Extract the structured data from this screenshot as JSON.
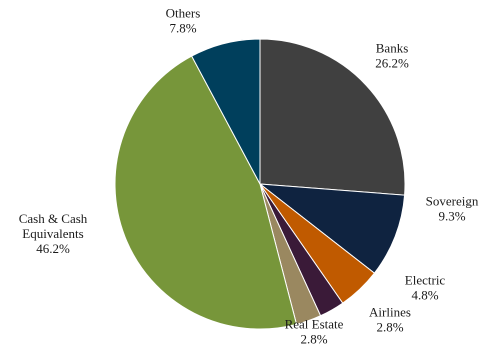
{
  "chart_data": {
    "type": "pie",
    "title": "",
    "start_angle_deg": 0,
    "direction": "clockwise",
    "slices": [
      {
        "label": "Banks",
        "value_label": "26.2%",
        "value": 26.2,
        "color": "#404040"
      },
      {
        "label": "Sovereign",
        "value_label": "9.3%",
        "value": 9.3,
        "color": "#0f2340"
      },
      {
        "label": "Electric",
        "value_label": "4.8%",
        "value": 4.8,
        "color": "#c05a00"
      },
      {
        "label": "Airlines",
        "value_label": "2.8%",
        "value": 2.8,
        "color": "#3a1a38"
      },
      {
        "label": "Real Estate",
        "value_label": "2.8%",
        "value": 2.8,
        "color": "#9a8860"
      },
      {
        "label": "Cash & Cash Equivalents",
        "label_lines": [
          "Cash & Cash",
          "Equivalents"
        ],
        "value_label": "46.2%",
        "value": 46.2,
        "color": "#77963a"
      },
      {
        "label": "Others",
        "value_label": "7.8%",
        "value": 7.8,
        "color": "#003f5c"
      }
    ]
  }
}
